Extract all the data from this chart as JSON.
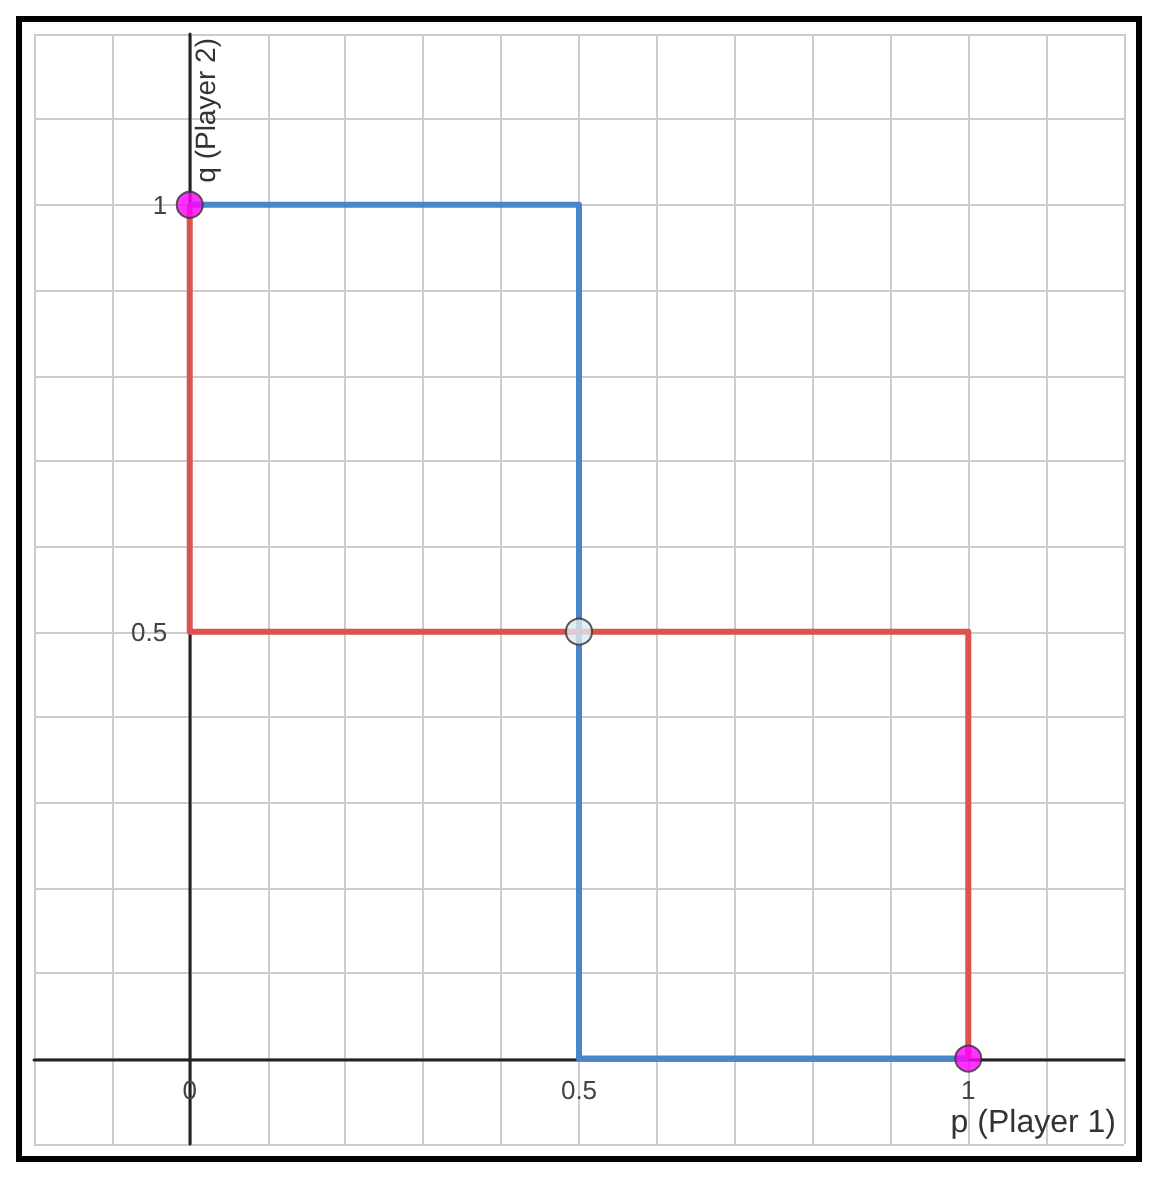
{
  "chart_data": {
    "type": "line",
    "xlabel": "p (Player 1)",
    "ylabel": "q (Player 2)",
    "xlim": [
      -0.2,
      1.2
    ],
    "ylim": [
      -0.1,
      1.2
    ],
    "xticks": [
      {
        "value": -0.2,
        "label": null
      },
      {
        "value": -0.1,
        "label": null
      },
      0,
      {
        "value": 0.1,
        "label": null
      },
      {
        "value": 0.2,
        "label": null
      },
      {
        "value": 0.3,
        "label": null
      },
      {
        "value": 0.4,
        "label": null
      },
      0.5,
      {
        "value": 0.6,
        "label": null
      },
      {
        "value": 0.7,
        "label": null
      },
      {
        "value": 0.8,
        "label": null
      },
      {
        "value": 0.9,
        "label": null
      },
      1,
      {
        "value": 1.1,
        "label": null
      },
      {
        "value": 1.2,
        "label": null
      }
    ],
    "yticks": [
      {
        "value": -0.1,
        "label": null
      },
      {
        "value": 0,
        "label": null
      },
      {
        "value": 0.1,
        "label": null
      },
      {
        "value": 0.2,
        "label": null
      },
      {
        "value": 0.3,
        "label": null
      },
      {
        "value": 0.4,
        "label": null
      },
      0.5,
      {
        "value": 0.6,
        "label": null
      },
      {
        "value": 0.7,
        "label": null
      },
      {
        "value": 0.8,
        "label": null
      },
      {
        "value": 0.9,
        "label": null
      },
      1,
      {
        "value": 1.1,
        "label": null
      },
      {
        "value": 1.2,
        "label": null
      }
    ],
    "grid": true,
    "series": [
      {
        "color": "#4a86c8",
        "x": [
          0,
          0.5,
          0.5,
          1
        ],
        "values": [
          1,
          1,
          0,
          0
        ],
        "marker": "none"
      },
      {
        "color": "#d9534f",
        "x": [
          0,
          0,
          1,
          1
        ],
        "values": [
          1,
          0.5,
          0.5,
          0
        ],
        "marker": "none"
      },
      {
        "type": "scatter",
        "x": [
          0,
          0.5,
          1
        ],
        "values": [
          1,
          0.5,
          0
        ],
        "colors": [
          "#ff00ff",
          "#dde8f0",
          "#ff00ff"
        ],
        "marker": "circle"
      }
    ]
  }
}
